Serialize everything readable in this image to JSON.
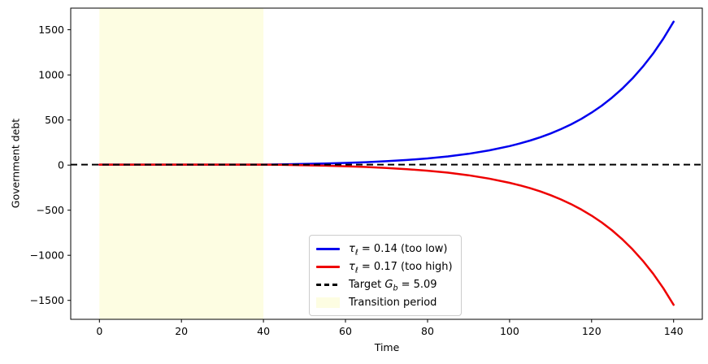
{
  "chart_data": {
    "type": "line",
    "title": "",
    "xlabel": "Time",
    "ylabel": "Government debt",
    "xlim": [
      -7,
      147
    ],
    "ylim": [
      -1710,
      1740
    ],
    "xticks": [
      0,
      20,
      40,
      60,
      80,
      100,
      120,
      140
    ],
    "xtick_labels": [
      "0",
      "20",
      "40",
      "60",
      "80",
      "100",
      "120",
      "140"
    ],
    "yticks": [
      -1500,
      -1000,
      -500,
      0,
      500,
      1000,
      1500
    ],
    "ytick_labels": [
      "−1500",
      "−1000",
      "−500",
      "0",
      "500",
      "1000",
      "1500"
    ],
    "grid": false,
    "legend_location": "inside lower-center-left",
    "transition_region": {
      "x0": 0,
      "x1": 40,
      "color": "#fdfde2",
      "label": "Transition period"
    },
    "target_line": {
      "value": 5.09,
      "color": "#000000",
      "style": "dashed",
      "label": "Target G_b = 5.09"
    },
    "x": [
      0,
      5,
      10,
      15,
      20,
      25,
      30,
      35,
      40,
      45,
      50,
      55,
      60,
      65,
      70,
      75,
      80,
      85,
      90,
      95,
      100,
      102.5,
      105,
      107.5,
      110,
      112.5,
      115,
      117.5,
      120,
      122.5,
      125,
      127.5,
      130,
      132.5,
      135,
      137.5,
      140
    ],
    "series": [
      {
        "name": "τ_ℓ = 0.14 (too low)",
        "color": "#0000ee",
        "values": [
          5.1,
          5.1,
          5.1,
          5.1,
          5.1,
          5.1,
          5.1,
          5.1,
          5.1,
          8.1,
          12.1,
          17.1,
          23.6,
          31.9,
          42.5,
          56.2,
          73.8,
          96.3,
          125.3,
          162.5,
          210.3,
          239.0,
          271.6,
          308.5,
          350.3,
          397.7,
          451.4,
          512.2,
          581.3,
          659.3,
          747.9,
          848.3,
          962.0,
          1090.8,
          1236.9,
          1402.3,
          1589.8
        ]
      },
      {
        "name": "τ_ℓ = 0.17 (too high)",
        "color": "#ee0000",
        "values": [
          5.1,
          5.1,
          5.1,
          5.1,
          5.1,
          5.1,
          5.1,
          5.1,
          5.1,
          2.1,
          -1.7,
          -6.7,
          -13.0,
          -21.2,
          -31.6,
          -45.1,
          -62.3,
          -84.5,
          -112.9,
          -149.4,
          -196.3,
          -224.5,
          -256.4,
          -292.6,
          -333.7,
          -380.2,
          -433.0,
          -492.6,
          -560.4,
          -637.0,
          -723.9,
          -822.4,
          -934.0,
          -1060.5,
          -1203.7,
          -1366.1,
          -1550.1
        ]
      }
    ]
  },
  "legend": {
    "items": [
      {
        "swatch": "solid-line",
        "color": "#0000ee",
        "plain": "",
        "sym": "τ",
        "sub": "ℓ",
        "rest": " = 0.14 (too low)"
      },
      {
        "swatch": "solid-line",
        "color": "#ee0000",
        "plain": "",
        "sym": "τ",
        "sub": "ℓ",
        "rest": " = 0.17 (too high)"
      },
      {
        "swatch": "dashed-line",
        "color": "#000000",
        "plain": "Target ",
        "sym": "G",
        "sub": "b",
        "rest": " = 5.09"
      },
      {
        "swatch": "patch",
        "color": "#fdfde2",
        "plain": "Transition period",
        "sym": "",
        "sub": "",
        "rest": ""
      }
    ]
  }
}
